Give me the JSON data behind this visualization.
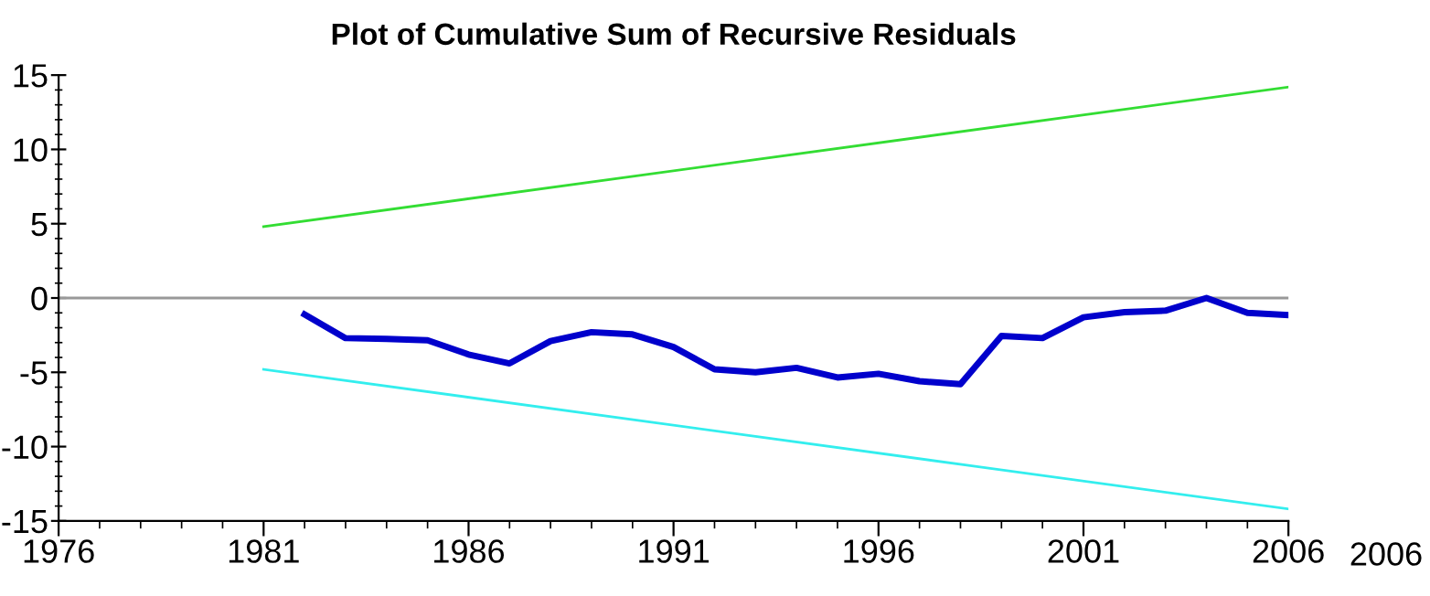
{
  "chart_data": {
    "type": "line",
    "title": "Plot of Cumulative Sum of Recursive Residuals",
    "series": [
      {
        "color": "#0000cc",
        "x": [
          1982,
          1983,
          1984,
          1985,
          1986,
          1987,
          1988,
          1989,
          1990,
          1991,
          1992,
          1993,
          1994,
          1995,
          1996,
          1997,
          1998,
          1999,
          2000,
          2001,
          2002,
          2003,
          2004,
          2005,
          2006
        ],
        "values": [
          -1.1,
          -2.7,
          -2.75,
          -2.85,
          -3.8,
          -4.4,
          -2.9,
          -2.3,
          -2.45,
          -3.3,
          -4.8,
          -5.0,
          -4.7,
          -5.35,
          -5.1,
          -5.6,
          -5.8,
          -2.55,
          -2.7,
          -1.3,
          -0.95,
          -0.85,
          0,
          -1.0,
          -1.15
        ]
      },
      {
        "color": "#33dd33",
        "x": [
          1981,
          2006
        ],
        "values": [
          4.8,
          14.2
        ]
      },
      {
        "color": "#33eeee",
        "x": [
          1981,
          2006
        ],
        "values": [
          -4.8,
          -14.2
        ]
      }
    ],
    "ref_lines": [
      {
        "axis": "y",
        "value": 0,
        "color": "#999999"
      }
    ],
    "xlim": [
      1976,
      2006
    ],
    "xticks": [
      1976,
      1981,
      1986,
      1991,
      1996,
      2001,
      2006
    ],
    "ylim": [
      -15,
      15
    ],
    "yticks": [
      -15,
      -10,
      -5,
      0,
      5,
      10,
      15
    ],
    "annotations": [
      "2006"
    ],
    "grid": false,
    "legend": false
  }
}
